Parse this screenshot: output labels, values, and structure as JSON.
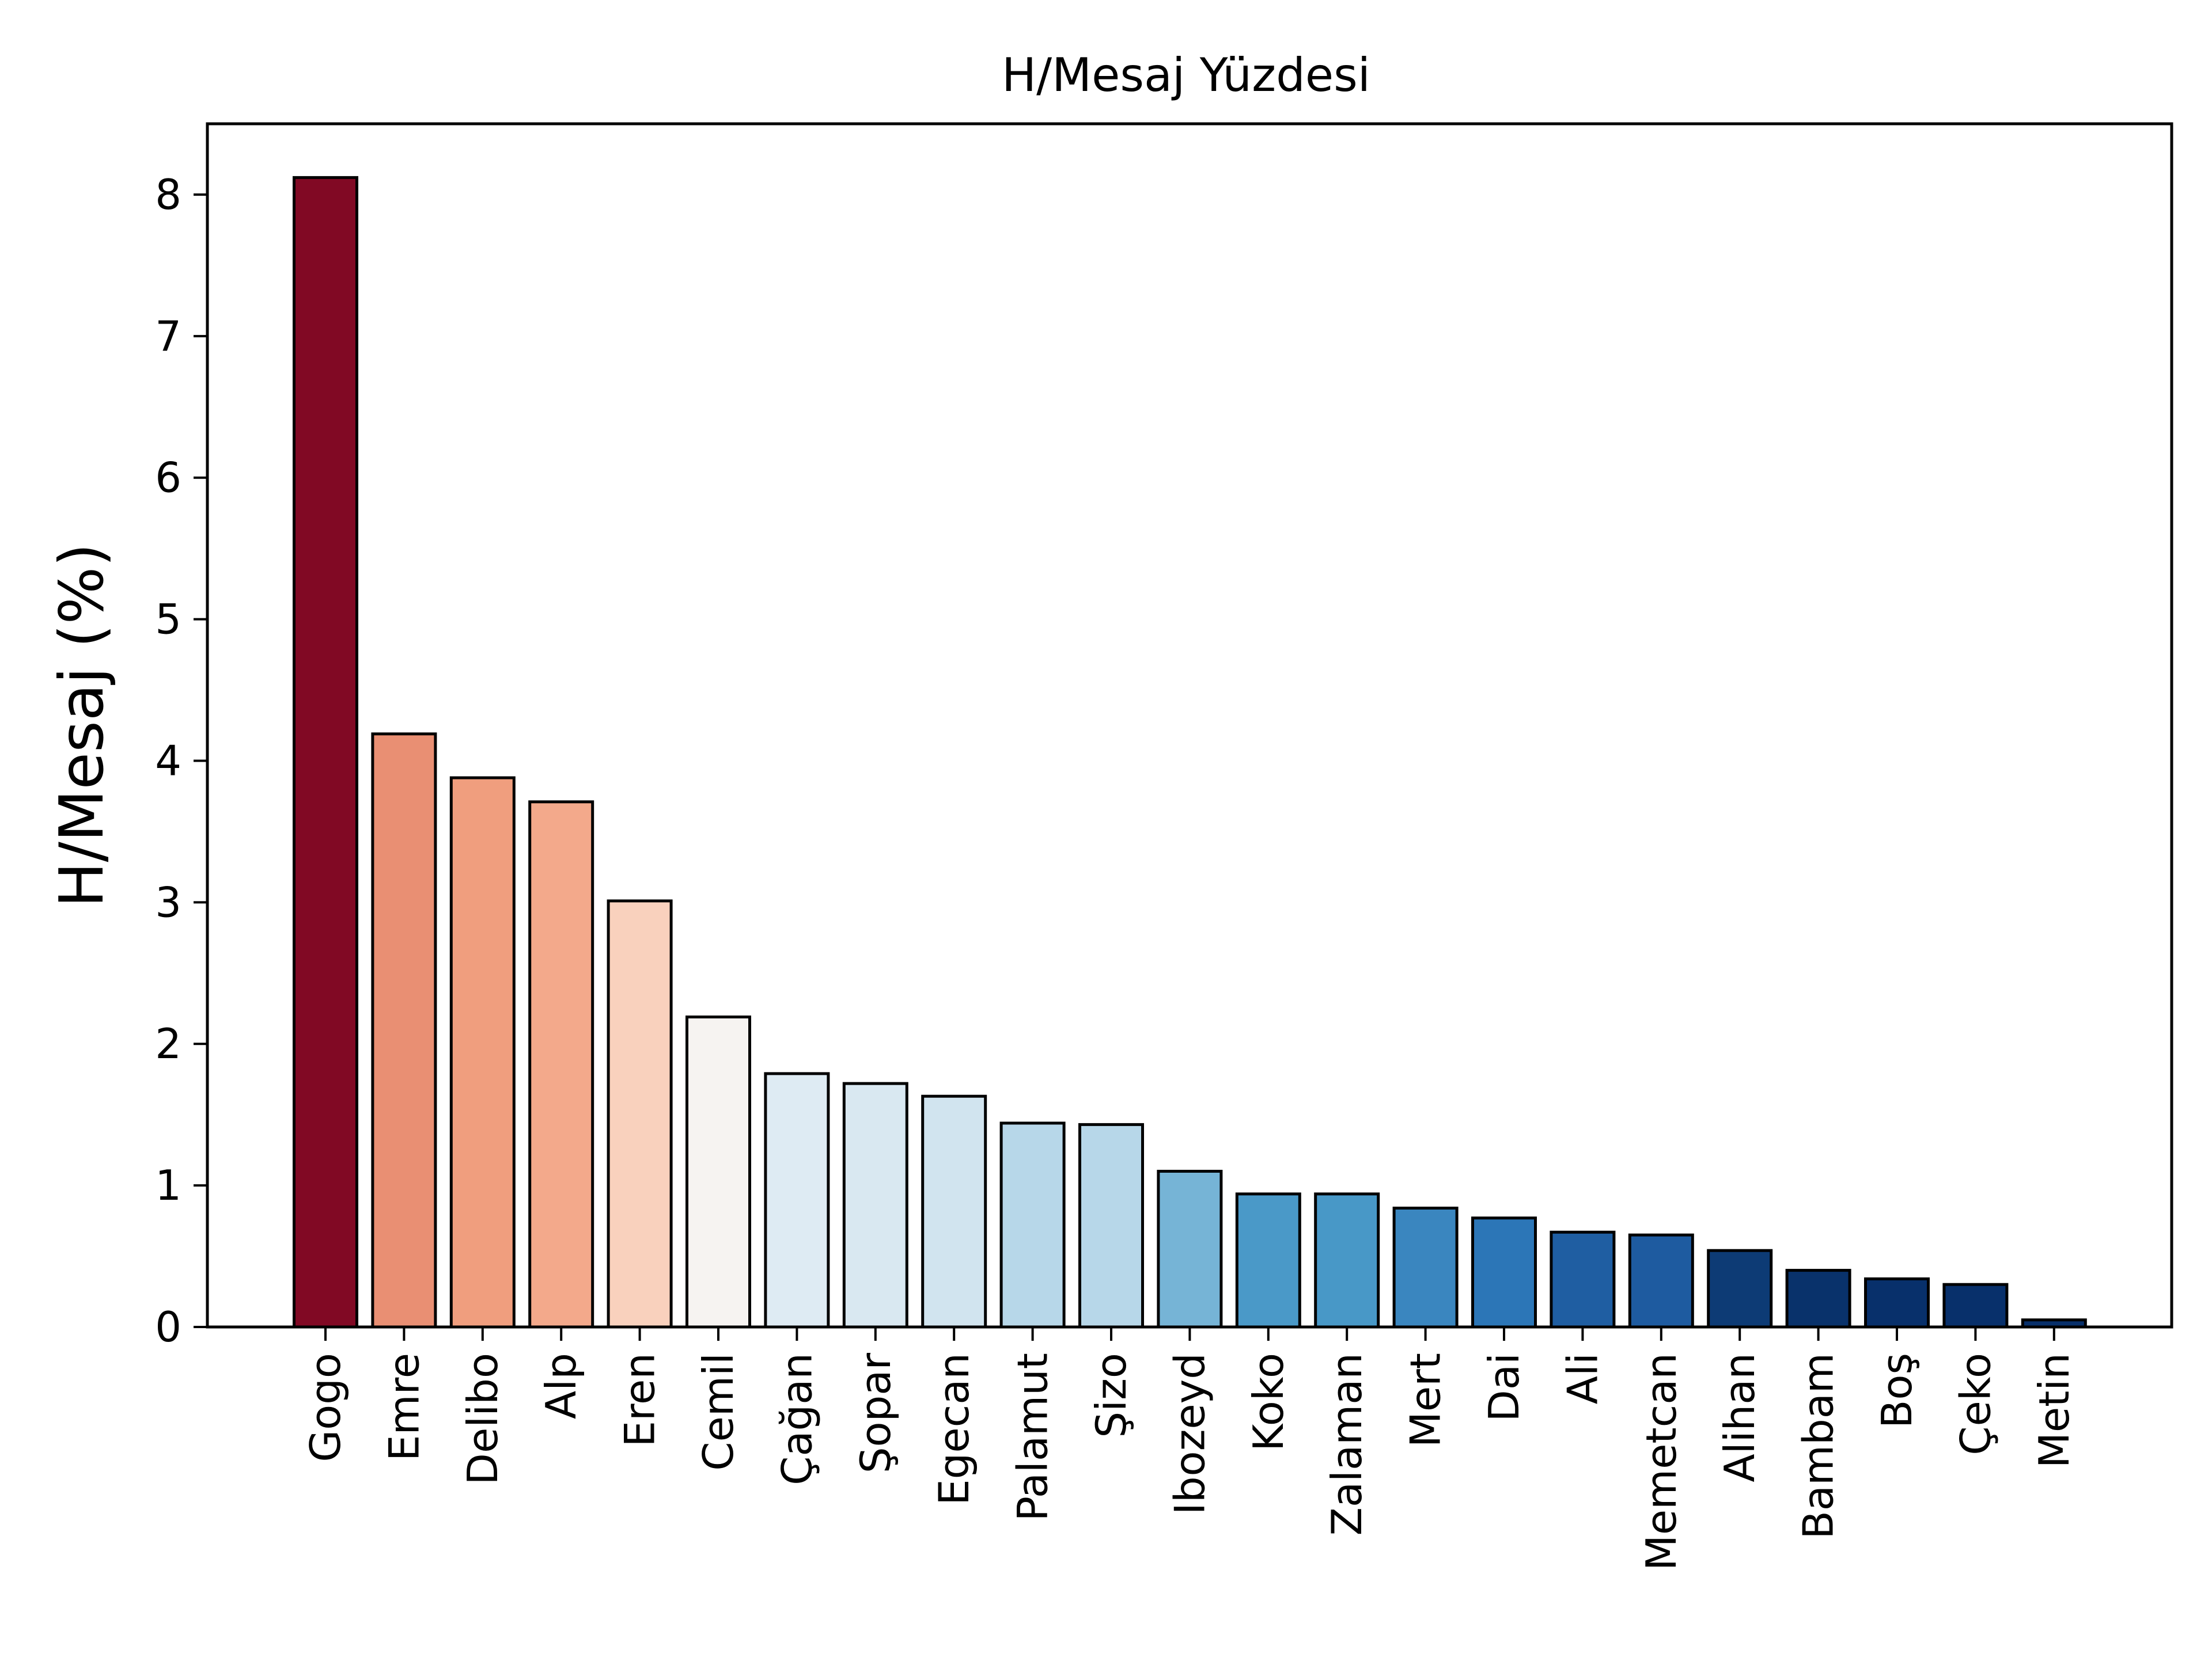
{
  "chart_data": {
    "type": "bar",
    "title": "H/Mesaj Yüzdesi",
    "xlabel": "",
    "ylabel": "H/Mesaj (%)",
    "ylim": [
      0,
      8.5
    ],
    "yticks": [
      0,
      1,
      2,
      3,
      4,
      5,
      6,
      7,
      8
    ],
    "grid": false,
    "legend": "none",
    "categories": [
      "Gogo",
      "Emre",
      "Delibo",
      "Alp",
      "Eren",
      "Cemil",
      "Çağan",
      "Şopar",
      "Egecan",
      "Palamut",
      "Şizo",
      "Ibozeyd",
      "Koko",
      "Zalaman",
      "Mert",
      "Dai",
      "Ali",
      "Memetcan",
      "Alihan",
      "Bambam",
      "Boş",
      "Çeko",
      "Metin"
    ],
    "values": [
      8.12,
      4.19,
      3.88,
      3.71,
      3.01,
      2.19,
      1.79,
      1.72,
      1.63,
      1.44,
      1.43,
      1.1,
      0.94,
      0.94,
      0.84,
      0.77,
      0.67,
      0.65,
      0.54,
      0.4,
      0.34,
      0.3,
      0.05
    ],
    "colors": [
      "#810924",
      "#e98f73",
      "#f09e7e",
      "#f3a98b",
      "#f9d1bd",
      "#f6f3f1",
      "#deebf3",
      "#d9e8f1",
      "#d1e4ef",
      "#b7d7e9",
      "#b7d7e9",
      "#76b4d6",
      "#4a99c8",
      "#4898c7",
      "#3a86bf",
      "#2c76b7",
      "#1f5ea2",
      "#1e5ba0",
      "#0d3b75",
      "#09326b",
      "#08306b",
      "#08306b",
      "#08306b"
    ],
    "bar_edge_color": "#000000"
  }
}
